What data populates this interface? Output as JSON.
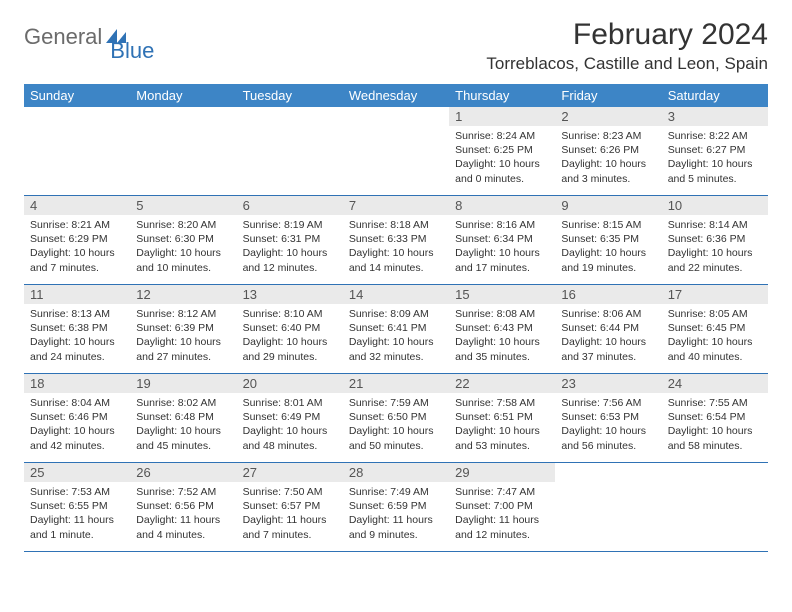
{
  "logo": {
    "text1": "General",
    "text2": "Blue"
  },
  "title": "February 2024",
  "location": "Torreblacos, Castille and Leon, Spain",
  "colors": {
    "header_bg": "#3d85c6",
    "brand_blue": "#2f72b5",
    "daynum_bg": "#eaeaea",
    "text": "#333333"
  },
  "dayNames": [
    "Sunday",
    "Monday",
    "Tuesday",
    "Wednesday",
    "Thursday",
    "Friday",
    "Saturday"
  ],
  "weeks": [
    [
      {
        "n": "",
        "sr": "",
        "ss": "",
        "dl": ""
      },
      {
        "n": "",
        "sr": "",
        "ss": "",
        "dl": ""
      },
      {
        "n": "",
        "sr": "",
        "ss": "",
        "dl": ""
      },
      {
        "n": "",
        "sr": "",
        "ss": "",
        "dl": ""
      },
      {
        "n": "1",
        "sr": "Sunrise: 8:24 AM",
        "ss": "Sunset: 6:25 PM",
        "dl": "Daylight: 10 hours and 0 minutes."
      },
      {
        "n": "2",
        "sr": "Sunrise: 8:23 AM",
        "ss": "Sunset: 6:26 PM",
        "dl": "Daylight: 10 hours and 3 minutes."
      },
      {
        "n": "3",
        "sr": "Sunrise: 8:22 AM",
        "ss": "Sunset: 6:27 PM",
        "dl": "Daylight: 10 hours and 5 minutes."
      }
    ],
    [
      {
        "n": "4",
        "sr": "Sunrise: 8:21 AM",
        "ss": "Sunset: 6:29 PM",
        "dl": "Daylight: 10 hours and 7 minutes."
      },
      {
        "n": "5",
        "sr": "Sunrise: 8:20 AM",
        "ss": "Sunset: 6:30 PM",
        "dl": "Daylight: 10 hours and 10 minutes."
      },
      {
        "n": "6",
        "sr": "Sunrise: 8:19 AM",
        "ss": "Sunset: 6:31 PM",
        "dl": "Daylight: 10 hours and 12 minutes."
      },
      {
        "n": "7",
        "sr": "Sunrise: 8:18 AM",
        "ss": "Sunset: 6:33 PM",
        "dl": "Daylight: 10 hours and 14 minutes."
      },
      {
        "n": "8",
        "sr": "Sunrise: 8:16 AM",
        "ss": "Sunset: 6:34 PM",
        "dl": "Daylight: 10 hours and 17 minutes."
      },
      {
        "n": "9",
        "sr": "Sunrise: 8:15 AM",
        "ss": "Sunset: 6:35 PM",
        "dl": "Daylight: 10 hours and 19 minutes."
      },
      {
        "n": "10",
        "sr": "Sunrise: 8:14 AM",
        "ss": "Sunset: 6:36 PM",
        "dl": "Daylight: 10 hours and 22 minutes."
      }
    ],
    [
      {
        "n": "11",
        "sr": "Sunrise: 8:13 AM",
        "ss": "Sunset: 6:38 PM",
        "dl": "Daylight: 10 hours and 24 minutes."
      },
      {
        "n": "12",
        "sr": "Sunrise: 8:12 AM",
        "ss": "Sunset: 6:39 PM",
        "dl": "Daylight: 10 hours and 27 minutes."
      },
      {
        "n": "13",
        "sr": "Sunrise: 8:10 AM",
        "ss": "Sunset: 6:40 PM",
        "dl": "Daylight: 10 hours and 29 minutes."
      },
      {
        "n": "14",
        "sr": "Sunrise: 8:09 AM",
        "ss": "Sunset: 6:41 PM",
        "dl": "Daylight: 10 hours and 32 minutes."
      },
      {
        "n": "15",
        "sr": "Sunrise: 8:08 AM",
        "ss": "Sunset: 6:43 PM",
        "dl": "Daylight: 10 hours and 35 minutes."
      },
      {
        "n": "16",
        "sr": "Sunrise: 8:06 AM",
        "ss": "Sunset: 6:44 PM",
        "dl": "Daylight: 10 hours and 37 minutes."
      },
      {
        "n": "17",
        "sr": "Sunrise: 8:05 AM",
        "ss": "Sunset: 6:45 PM",
        "dl": "Daylight: 10 hours and 40 minutes."
      }
    ],
    [
      {
        "n": "18",
        "sr": "Sunrise: 8:04 AM",
        "ss": "Sunset: 6:46 PM",
        "dl": "Daylight: 10 hours and 42 minutes."
      },
      {
        "n": "19",
        "sr": "Sunrise: 8:02 AM",
        "ss": "Sunset: 6:48 PM",
        "dl": "Daylight: 10 hours and 45 minutes."
      },
      {
        "n": "20",
        "sr": "Sunrise: 8:01 AM",
        "ss": "Sunset: 6:49 PM",
        "dl": "Daylight: 10 hours and 48 minutes."
      },
      {
        "n": "21",
        "sr": "Sunrise: 7:59 AM",
        "ss": "Sunset: 6:50 PM",
        "dl": "Daylight: 10 hours and 50 minutes."
      },
      {
        "n": "22",
        "sr": "Sunrise: 7:58 AM",
        "ss": "Sunset: 6:51 PM",
        "dl": "Daylight: 10 hours and 53 minutes."
      },
      {
        "n": "23",
        "sr": "Sunrise: 7:56 AM",
        "ss": "Sunset: 6:53 PM",
        "dl": "Daylight: 10 hours and 56 minutes."
      },
      {
        "n": "24",
        "sr": "Sunrise: 7:55 AM",
        "ss": "Sunset: 6:54 PM",
        "dl": "Daylight: 10 hours and 58 minutes."
      }
    ],
    [
      {
        "n": "25",
        "sr": "Sunrise: 7:53 AM",
        "ss": "Sunset: 6:55 PM",
        "dl": "Daylight: 11 hours and 1 minute."
      },
      {
        "n": "26",
        "sr": "Sunrise: 7:52 AM",
        "ss": "Sunset: 6:56 PM",
        "dl": "Daylight: 11 hours and 4 minutes."
      },
      {
        "n": "27",
        "sr": "Sunrise: 7:50 AM",
        "ss": "Sunset: 6:57 PM",
        "dl": "Daylight: 11 hours and 7 minutes."
      },
      {
        "n": "28",
        "sr": "Sunrise: 7:49 AM",
        "ss": "Sunset: 6:59 PM",
        "dl": "Daylight: 11 hours and 9 minutes."
      },
      {
        "n": "29",
        "sr": "Sunrise: 7:47 AM",
        "ss": "Sunset: 7:00 PM",
        "dl": "Daylight: 11 hours and 12 minutes."
      },
      {
        "n": "",
        "sr": "",
        "ss": "",
        "dl": ""
      },
      {
        "n": "",
        "sr": "",
        "ss": "",
        "dl": ""
      }
    ]
  ]
}
